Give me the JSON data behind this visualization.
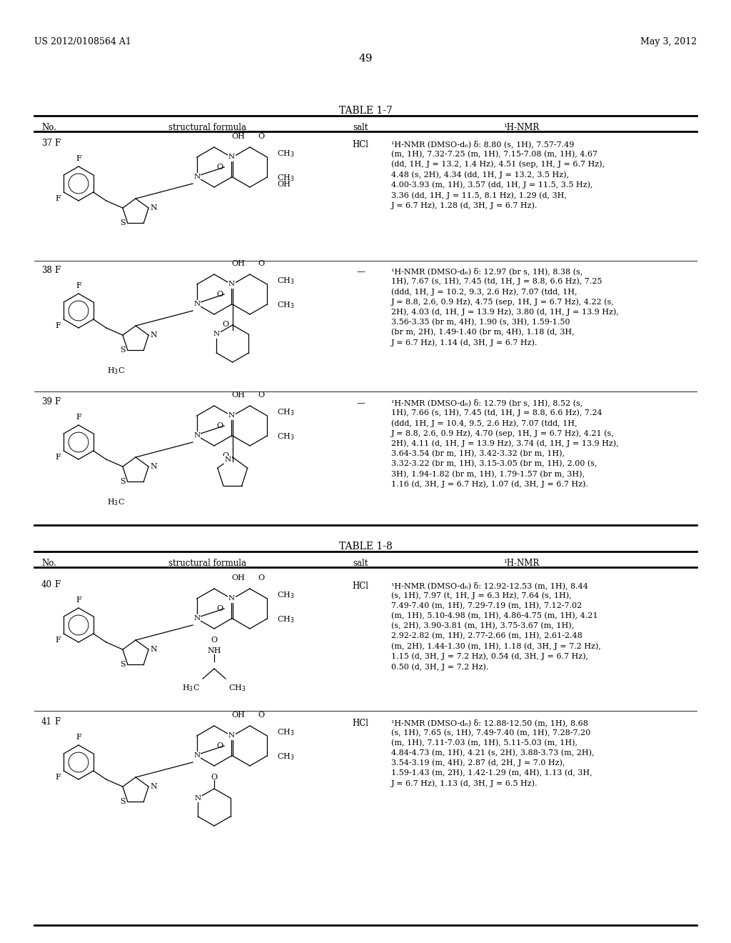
{
  "bg": "#ffffff",
  "header_left": "US 2012/0108564 A1",
  "header_right": "May 3, 2012",
  "page_num": "49",
  "table1_title": "TABLE 1-7",
  "table2_title": "TABLE 1-8",
  "col_headers": [
    "No.",
    "structural formula",
    "salt",
    "¹H-NMR"
  ],
  "rows": [
    {
      "no": "37",
      "salt": "HCl",
      "table": 1,
      "nmr": "¹H-NMR (DMSO-d₆) δ: 8.80 (s, 1H), 7.57-7.49\n(m, 1H), 7.32-7.25 (m, 1H), 7.15-7.08 (m, 1H), 4.67\n(dd, 1H, J = 13.2, 1.4 Hz), 4.51 (sep, 1H, J = 6.7 Hz),\n4.48 (s, 2H), 4.34 (dd, 1H, J = 13.2, 3.5 Hz),\n4.00-3.93 (m, 1H), 3.57 (dd, 1H, J = 11.5, 3.5 Hz),\n3.36 (dd, 1H, J = 11.5, 8.1 Hz), 1.29 (d, 3H,\nJ = 6.7 Hz), 1.28 (d, 3H, J = 6.7 Hz)."
    },
    {
      "no": "38",
      "salt": "—",
      "table": 1,
      "nmr": "¹H-NMR (DMSO-d₆) δ: 12.97 (br s, 1H), 8.38 (s,\n1H), 7.67 (s, 1H), 7.45 (td, 1H, J = 8.8, 6.6 Hz), 7.25\n(ddd, 1H, J = 10.2, 9.3, 2.6 Hz), 7.07 (tdd, 1H,\nJ = 8.8, 2.6, 0.9 Hz), 4.75 (sep, 1H, J = 6.7 Hz), 4.22 (s,\n2H), 4.03 (d, 1H, J = 13.9 Hz), 3.80 (d, 1H, J = 13.9 Hz),\n3.56-3.35 (br m, 4H), 1.90 (s, 3H), 1.59-1.50\n(br m, 2H), 1.49-1.40 (br m, 4H), 1.18 (d, 3H,\nJ = 6.7 Hz), 1.14 (d, 3H, J = 6.7 Hz)."
    },
    {
      "no": "39",
      "salt": "—",
      "table": 1,
      "nmr": "¹H-NMR (DMSO-d₆) δ: 12.79 (br s, 1H), 8.52 (s,\n1H), 7.66 (s, 1H), 7.45 (td, 1H, J = 8.8, 6.6 Hz), 7.24\n(ddd, 1H, J = 10.4, 9.5, 2.6 Hz), 7.07 (tdd, 1H,\nJ = 8.8, 2.6, 0.9 Hz), 4.70 (sep, 1H, J = 6.7 Hz), 4.21 (s,\n2H), 4.11 (d, 1H, J = 13.9 Hz), 3.74 (d, 1H, J = 13.9 Hz),\n3.64-3.54 (br m, 1H), 3.42-3.32 (br m, 1H),\n3.32-3.22 (br m, 1H), 3.15-3.05 (br m, 1H), 2.00 (s,\n3H), 1.94-1.82 (br m, 1H), 1.79-1.57 (br m, 3H),\n1.16 (d, 3H, J = 6.7 Hz), 1.07 (d, 3H, J = 6.7 Hz)."
    },
    {
      "no": "40",
      "salt": "HCl",
      "table": 2,
      "nmr": "¹H-NMR (DMSO-d₆) δ: 12.92-12.53 (m, 1H), 8.44\n(s, 1H), 7.97 (t, 1H, J = 6.3 Hz), 7.64 (s, 1H),\n7.49-7.40 (m, 1H), 7.29-7.19 (m, 1H), 7.12-7.02\n(m, 1H), 5.10-4.98 (m, 1H), 4.86-4.75 (m, 1H), 4.21\n(s, 2H), 3.90-3.81 (m, 1H), 3.75-3.67 (m, 1H),\n2.92-2.82 (m, 1H), 2.77-2.66 (m, 1H), 2.61-2.48\n(m, 2H), 1.44-1.30 (m, 1H), 1.18 (d, 3H, J = 7.2 Hz),\n1.15 (d, 3H, J = 7.2 Hz), 0.54 (d, 3H, J = 6.7 Hz),\n0.50 (d, 3H, J = 7.2 Hz)."
    },
    {
      "no": "41",
      "salt": "HCl",
      "table": 2,
      "nmr": "¹H-NMR (DMSO-d₆) δ: 12.88-12.50 (m, 1H), 8.68\n(s, 1H), 7.65 (s, 1H), 7.49-7.40 (m, 1H), 7.28-7.20\n(m, 1H), 7.11-7.03 (m, 1H), 5.11-5.03 (m, 1H),\n4.84-4.73 (m, 1H), 4.21 (s, 2H), 3.88-3.73 (m, 2H),\n3.54-3.19 (m, 4H), 2.87 (d, 2H, J = 7.0 Hz),\n1.59-1.43 (m, 2H), 1.42-1.29 (m, 4H), 1.13 (d, 3H,\nJ = 6.7 Hz), 1.13 (d, 3H, J = 6.5 Hz)."
    }
  ]
}
